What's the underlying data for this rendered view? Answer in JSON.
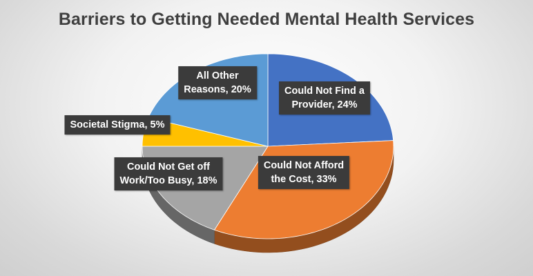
{
  "chart_data": {
    "type": "pie",
    "title": "Barriers to Getting Needed Mental Health Services",
    "slices": [
      {
        "label": "Could Not Find a Provider",
        "value": 24,
        "display": "Could Not Find a\nProvider, 24%",
        "color": "#4472C4"
      },
      {
        "label": "Could Not Afford the Cost",
        "value": 33,
        "display": "Could Not Afford\nthe Cost, 33%",
        "color": "#ED7D31"
      },
      {
        "label": "Could Not Get off Work/Too Busy",
        "value": 18,
        "display": "Could Not Get off\nWork/Too Busy, 18%",
        "color": "#A5A5A5"
      },
      {
        "label": "Societal Stigma",
        "value": 5,
        "display": "Societal Stigma, 5%",
        "color": "#FFC000"
      },
      {
        "label": "All Other Reasons",
        "value": 20,
        "display": "All Other\nReasons, 20%",
        "color": "#5B9BD5"
      }
    ],
    "style": "3d-pie",
    "start_angle": "12 o'clock",
    "legend": "none"
  }
}
